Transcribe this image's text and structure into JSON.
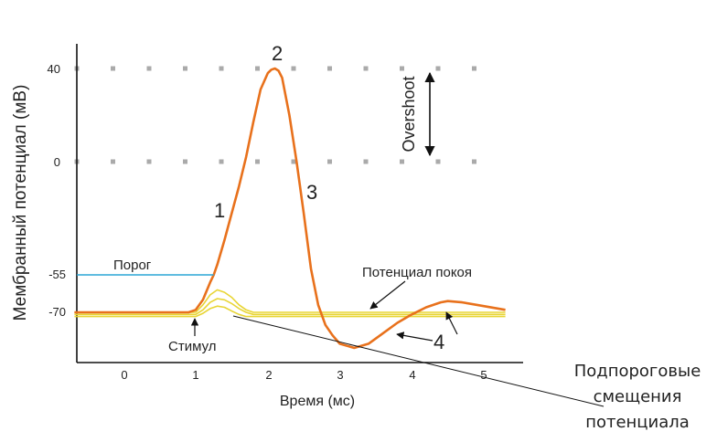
{
  "chart_data": {
    "type": "line",
    "xlabel": "Время (мс)",
    "ylabel": "Мембранный потенциал (мВ)",
    "x_ticks": [
      "0",
      "1",
      "2",
      "3",
      "4",
      "5"
    ],
    "y_ticks": [
      "40",
      "0",
      "-55",
      "-70"
    ],
    "xlim": [
      -0.7,
      5.5
    ],
    "ylim": [
      -94,
      52
    ],
    "series": [
      {
        "color": "#e8711c",
        "x": [
          -0.7,
          0.9,
          1.0,
          1.1,
          1.2,
          1.25,
          1.3,
          1.4,
          1.5,
          1.6,
          1.7,
          1.8,
          1.9,
          2.0,
          2.05,
          2.1,
          2.15,
          2.2,
          2.3,
          2.4,
          2.5,
          2.6,
          2.7,
          2.8,
          2.9,
          3.0,
          3.2,
          3.4,
          3.6,
          3.8,
          4.0,
          4.2,
          4.4,
          4.5,
          4.7,
          5.0,
          5.3
        ],
        "y": [
          -70,
          -70,
          -69,
          -65,
          -58,
          -55,
          -50,
          -38,
          -25,
          -12,
          2,
          17,
          31,
          38,
          39.5,
          40,
          39,
          36,
          20,
          0,
          -25,
          -52,
          -67,
          -76,
          -81,
          -85,
          -87,
          -85,
          -80,
          -75,
          -71,
          -68,
          -66,
          -65.5,
          -66,
          -67.5,
          -69
        ]
      },
      {
        "color": "#e8d534",
        "x": [
          -0.7,
          1.0,
          1.1,
          1.2,
          1.3,
          1.4,
          1.5,
          1.6,
          1.7,
          1.8,
          5.3
        ],
        "y": [
          -70,
          -70,
          -67,
          -63,
          -61,
          -62,
          -64,
          -67,
          -69,
          -70,
          -70
        ]
      },
      {
        "color": "#e8d534",
        "x": [
          -0.7,
          1.0,
          1.1,
          1.2,
          1.3,
          1.4,
          1.5,
          1.6,
          1.7,
          1.8,
          5.3
        ],
        "y": [
          -71,
          -71,
          -69,
          -66,
          -64.5,
          -65,
          -66.5,
          -68.5,
          -70,
          -71,
          -71
        ]
      },
      {
        "color": "#e8d534",
        "x": [
          -0.7,
          1.0,
          1.1,
          1.2,
          1.3,
          1.4,
          1.5,
          1.6,
          1.7,
          1.8,
          5.3
        ],
        "y": [
          -72,
          -72,
          -70.5,
          -68.5,
          -67.5,
          -68,
          -69.5,
          -71,
          -72,
          -72,
          -72
        ]
      }
    ],
    "grid": "dotted at 40 and 0",
    "threshold": {
      "y": -55,
      "label": "Порог",
      "color": "#2aa5d6"
    },
    "annotations": {
      "rising": "1",
      "peak": "2",
      "falling": "3",
      "hyperpolarization": "4",
      "overshoot": "Overshoot",
      "resting": "Потенциал покоя",
      "stimulus": "Стимул",
      "subthreshold_line1": "Подпороговые",
      "subthreshold_line2": "смещения",
      "subthreshold_line3": "потенциала"
    }
  }
}
